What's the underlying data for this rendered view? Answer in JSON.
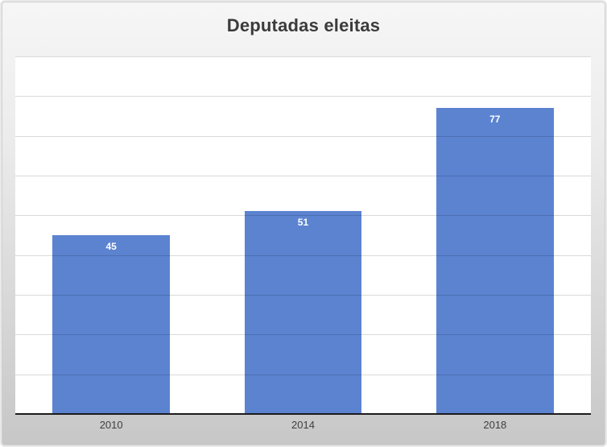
{
  "chart_data": {
    "type": "bar",
    "title": "Deputadas eleitas",
    "categories": [
      "2010",
      "2014",
      "2018"
    ],
    "values": [
      45,
      51,
      77
    ],
    "data_labels": [
      "45",
      "51",
      "77"
    ],
    "xlabel": "",
    "ylabel": "",
    "ylim": [
      0,
      90
    ],
    "gridline_step": 10,
    "grid": true,
    "legend_position": "none",
    "data_labels_position": "inside-top",
    "colors": {
      "bar": "#5b83d0",
      "data_label": "#ffffff",
      "axis_line": "#1c1c1c",
      "tick_label": "#3f3f3f",
      "title": "#3b3b3b",
      "plot_background": "#ffffff",
      "chart_background_top": "#f6f6f6",
      "chart_background_bottom": "#c7c7c7",
      "gridline": "#d9d9d9"
    }
  }
}
